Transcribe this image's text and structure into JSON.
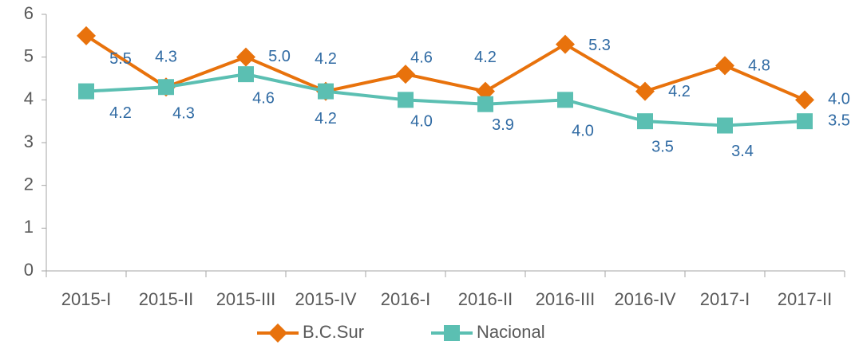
{
  "chart_data": {
    "type": "line",
    "categories": [
      "2015-I",
      "2015-II",
      "2015-III",
      "2015-IV",
      "2016-I",
      "2016-II",
      "2016-III",
      "2016-IV",
      "2017-I",
      "2017-II"
    ],
    "series": [
      {
        "name": "B.C.Sur",
        "color": "#e8720c",
        "marker": "diamond",
        "values": [
          5.5,
          4.3,
          5.0,
          4.2,
          4.6,
          4.2,
          5.3,
          4.2,
          4.8,
          4.0
        ],
        "value_labels": [
          "5.5",
          "4.3",
          "5.0",
          "4.2",
          "4.6",
          "4.2",
          "5.3",
          "4.2",
          "4.8",
          "4.0"
        ]
      },
      {
        "name": "Nacional",
        "color": "#5bbfb2",
        "marker": "square",
        "values": [
          4.2,
          4.3,
          4.6,
          4.2,
          4.0,
          3.9,
          4.0,
          3.5,
          3.4,
          3.5
        ],
        "value_labels": [
          "4.2",
          "4.3",
          "4.6",
          "4.2",
          "4.0",
          "3.9",
          "4.0",
          "3.5",
          "3.4",
          "3.5"
        ]
      }
    ],
    "ylim": [
      0,
      6
    ],
    "yticks": [
      0,
      1,
      2,
      3,
      4,
      5,
      6
    ],
    "grid": false,
    "legend": "bottom"
  }
}
